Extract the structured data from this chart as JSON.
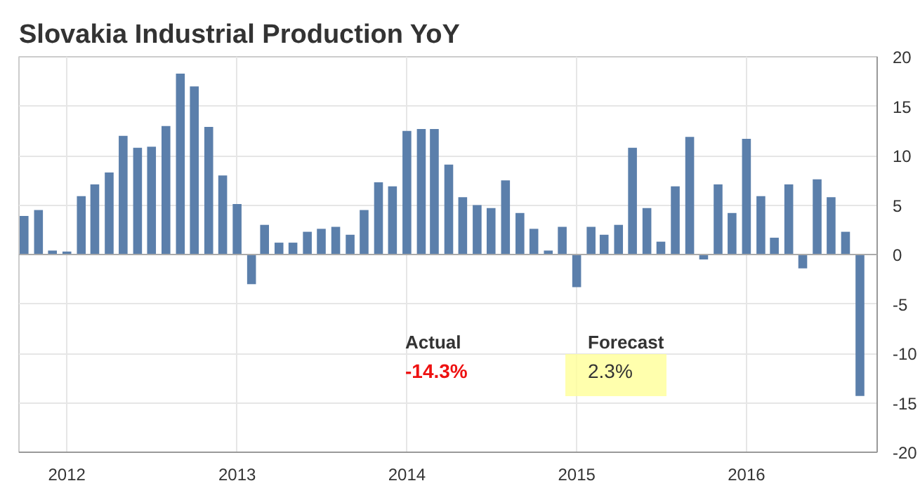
{
  "chart_data": {
    "type": "bar",
    "title": "Slovakia Industrial Production YoY",
    "x": [
      "2011-10",
      "2011-11",
      "2011-12",
      "2012-01",
      "2012-02",
      "2012-03",
      "2012-04",
      "2012-05",
      "2012-06",
      "2012-07",
      "2012-08",
      "2012-09",
      "2012-10",
      "2012-11",
      "2012-12",
      "2013-01",
      "2013-02",
      "2013-03",
      "2013-04",
      "2013-05",
      "2013-06",
      "2013-07",
      "2013-08",
      "2013-09",
      "2013-10",
      "2013-11",
      "2013-12",
      "2014-01",
      "2014-02",
      "2014-03",
      "2014-04",
      "2014-05",
      "2014-06",
      "2014-07",
      "2014-08",
      "2014-09",
      "2014-10",
      "2014-11",
      "2014-12",
      "2015-01",
      "2015-02",
      "2015-03",
      "2015-04",
      "2015-05",
      "2015-06",
      "2015-07",
      "2015-08",
      "2015-09",
      "2015-10",
      "2015-11",
      "2015-12",
      "2016-01",
      "2016-02",
      "2016-03",
      "2016-04",
      "2016-05",
      "2016-06",
      "2016-07",
      "2016-08",
      "2016-09"
    ],
    "values": [
      3.9,
      4.5,
      0.4,
      0.3,
      5.9,
      7.1,
      8.3,
      12.0,
      10.8,
      10.9,
      13.0,
      18.3,
      17.0,
      12.9,
      8.0,
      5.1,
      -3.0,
      3.0,
      1.2,
      1.2,
      2.3,
      2.6,
      2.8,
      2.0,
      4.5,
      7.3,
      6.9,
      12.5,
      12.7,
      12.7,
      9.1,
      5.8,
      5.0,
      4.7,
      7.5,
      4.2,
      2.6,
      0.4,
      2.8,
      -3.3,
      2.8,
      2.0,
      3.0,
      10.8,
      4.7,
      1.3,
      6.9,
      11.9,
      -0.5,
      7.1,
      4.2,
      11.7,
      5.9,
      1.7,
      7.1,
      -1.4,
      7.6,
      5.8,
      2.3,
      -14.3
    ],
    "color": "#5b7fab",
    "xlim": [
      "2011-09-20",
      "2016-10-08"
    ],
    "xticks": [
      {
        "value": "2012-01-01",
        "label": "2012"
      },
      {
        "value": "2013-01-01",
        "label": "2013"
      },
      {
        "value": "2014-01-01",
        "label": "2014"
      },
      {
        "value": "2015-01-01",
        "label": "2015"
      },
      {
        "value": "2016-01-01",
        "label": "2016"
      }
    ],
    "ylim": [
      -20,
      20
    ],
    "yticks": [
      -20,
      -15,
      -10,
      -5,
      0,
      5,
      10,
      15,
      20
    ],
    "grid": true,
    "annotations": [
      "Actual",
      "-14.3%",
      "Forecast",
      "2.3%"
    ]
  }
}
